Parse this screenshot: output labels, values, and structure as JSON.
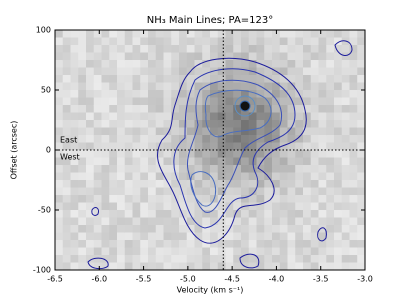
{
  "chart_data": {
    "type": "contour",
    "title": "NH₃ Main Lines; PA=123°",
    "x_label": "Velocity (km s⁻¹)",
    "y_label": "Offset (arcsec)",
    "annotations": [
      "East",
      "West"
    ],
    "xlim": [
      -6.5,
      -3.0
    ],
    "xticks": [
      -6.5,
      {
        "value": -6,
        "label": "-6.0"
      },
      -5.5,
      {
        "value": -5,
        "label": "-5.0"
      },
      -4.5,
      {
        "value": -4,
        "label": "-4.0"
      },
      -3.5,
      {
        "value": -3,
        "label": "-3.0"
      }
    ],
    "ylim": [
      -100,
      100
    ],
    "yticks": [
      -100,
      -50,
      0,
      50,
      100
    ],
    "vline": -4.6,
    "hline": 0
  }
}
